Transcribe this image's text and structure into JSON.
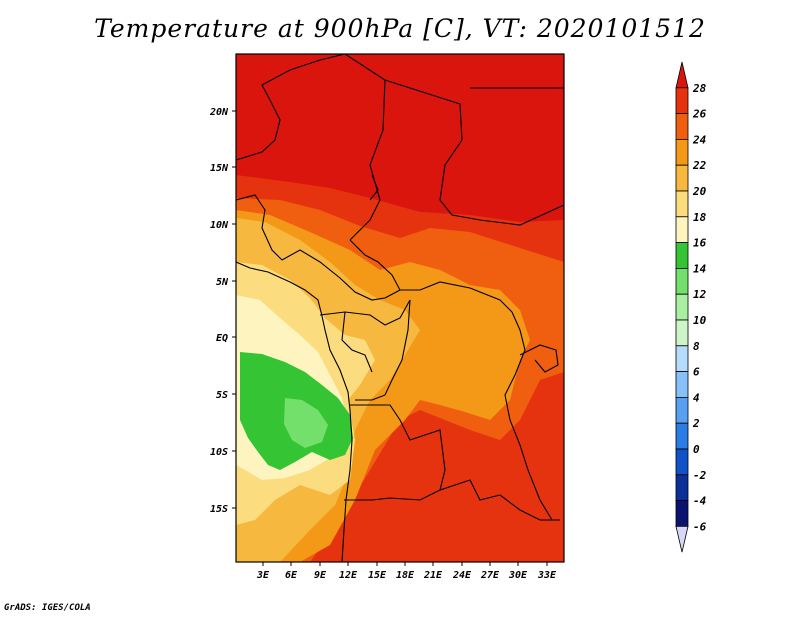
{
  "title": "Temperature at 900hPa [C], VT: 2020101512",
  "credit": "GrADS: IGES/COLA",
  "lat_labels": [
    "20N",
    "15N",
    "10N",
    "5N",
    "EQ",
    "5S",
    "10S",
    "15S"
  ],
  "lon_labels": [
    "3E",
    "6E",
    "9E",
    "12E",
    "15E",
    "18E",
    "21E",
    "24E",
    "27E",
    "30E",
    "33E"
  ],
  "colorbar": {
    "labels": [
      "28",
      "26",
      "24",
      "22",
      "20",
      "18",
      "16",
      "14",
      "12",
      "10",
      "8",
      "6",
      "4",
      "2",
      "0",
      "-2",
      "-4",
      "-6"
    ],
    "colors": [
      "#d9150e",
      "#e6330f",
      "#ef5f0f",
      "#f39817",
      "#f7b840",
      "#fbdc7e",
      "#fef4c0",
      "#35c534",
      "#73e06c",
      "#a9efa2",
      "#cdf5c9",
      "#b5dcfb",
      "#87c1f8",
      "#5aa0f1",
      "#2c7ce5",
      "#1052c8",
      "#0c2f9a",
      "#0a136e",
      "#d7d8f8"
    ]
  }
}
